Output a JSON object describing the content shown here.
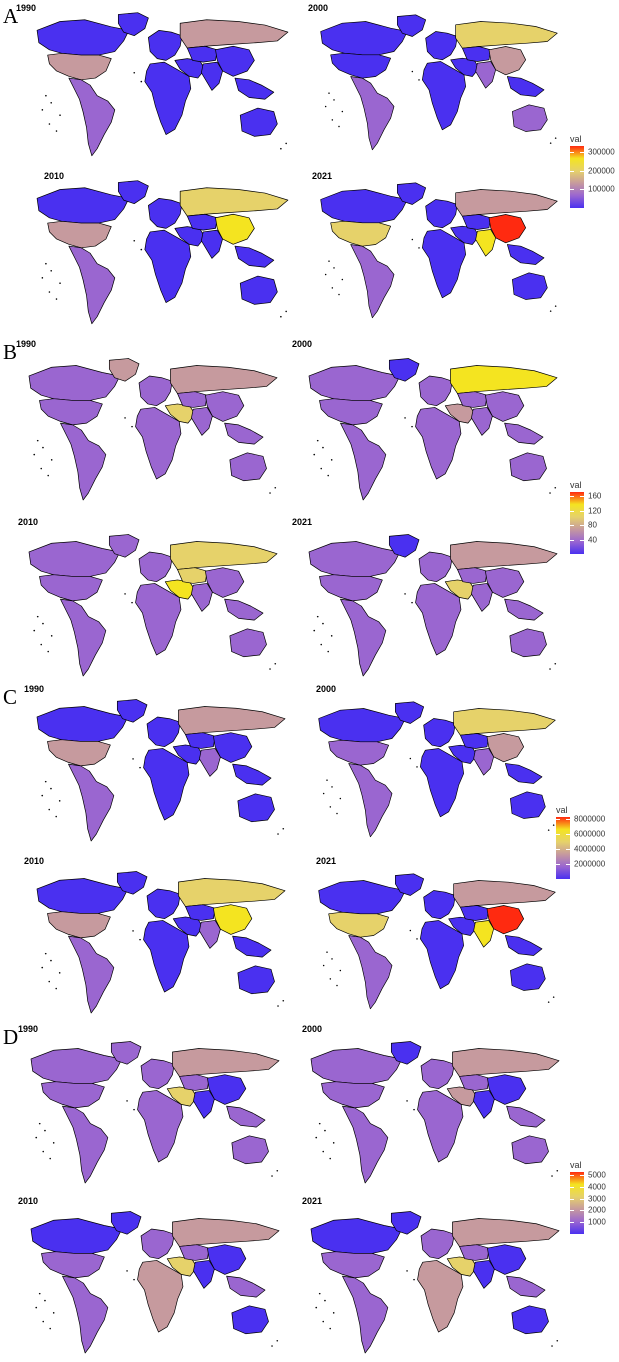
{
  "panels": [
    {
      "letter": "A",
      "years": [
        "1990",
        "2000",
        "2010",
        "2021"
      ],
      "legend": {
        "title": "val",
        "ticks": [
          "300000",
          "200000",
          "100000"
        ],
        "max_fraction": 0.9
      },
      "maps": [
        {
          "NA": "low",
          "GL": "low",
          "USA": "mid",
          "LA": "lowmid",
          "EU": "low",
          "RU": "mid",
          "AF": "low",
          "ME": "low",
          "CA": "low",
          "CN": "low",
          "IN": "low",
          "SEA": "low",
          "AU": "low"
        },
        {
          "NA": "low",
          "GL": "low",
          "USA": "low",
          "LA": "lowmid",
          "EU": "low",
          "RU": "highmid",
          "AF": "low",
          "ME": "low",
          "CA": "low",
          "CN": "mid",
          "IN": "lowmid",
          "SEA": "low",
          "AU": "lowmid"
        },
        {
          "NA": "low",
          "GL": "low",
          "USA": "mid",
          "LA": "lowmid",
          "EU": "low",
          "RU": "highmid",
          "AF": "low",
          "ME": "low",
          "CA": "low",
          "CN": "high",
          "IN": "low",
          "SEA": "low",
          "AU": "low"
        },
        {
          "NA": "low",
          "GL": "low",
          "USA": "highmid",
          "LA": "lowmid",
          "EU": "low",
          "RU": "mid",
          "AF": "low",
          "ME": "low",
          "CA": "low",
          "CN": "max",
          "IN": "high",
          "SEA": "low",
          "AU": "low"
        }
      ]
    },
    {
      "letter": "B",
      "years": [
        "1990",
        "2000",
        "2010",
        "2021"
      ],
      "legend": {
        "title": "val",
        "ticks": [
          "160",
          "120",
          "80",
          "40"
        ],
        "max_fraction": 0.93
      },
      "maps": [
        {
          "NA": "lowmid",
          "GL": "mid",
          "USA": "lowmid",
          "LA": "lowmid",
          "EU": "lowmid",
          "RU": "mid",
          "AF": "lowmid",
          "ME": "highmid",
          "CA": "lowmid",
          "CN": "lowmid",
          "IN": "lowmid",
          "SEA": "lowmid",
          "AU": "lowmid"
        },
        {
          "NA": "lowmid",
          "GL": "low",
          "USA": "lowmid",
          "LA": "lowmid",
          "EU": "lowmid",
          "RU": "high",
          "AF": "lowmid",
          "ME": "mid",
          "CA": "lowmid",
          "CN": "lowmid",
          "IN": "lowmid",
          "SEA": "lowmid",
          "AU": "lowmid"
        },
        {
          "NA": "lowmid",
          "GL": "lowmid",
          "USA": "lowmid",
          "LA": "lowmid",
          "EU": "lowmid",
          "RU": "highmid",
          "AF": "lowmid",
          "ME": "high",
          "CA": "highmid",
          "CN": "lowmid",
          "IN": "lowmid",
          "SEA": "lowmid",
          "AU": "lowmid"
        },
        {
          "NA": "lowmid",
          "GL": "low",
          "USA": "lowmid",
          "LA": "lowmid",
          "EU": "lowmid",
          "RU": "mid",
          "AF": "lowmid",
          "ME": "highmid",
          "CA": "lowmid",
          "CN": "lowmid",
          "IN": "lowmid",
          "SEA": "lowmid",
          "AU": "lowmid"
        }
      ]
    },
    {
      "letter": "C",
      "years": [
        "1990",
        "2000",
        "2010",
        "2021"
      ],
      "legend": {
        "title": "val",
        "ticks": [
          "8000000",
          "6000000",
          "4000000",
          "2000000"
        ],
        "max_fraction": 0.97
      },
      "maps": [
        {
          "NA": "low",
          "GL": "low",
          "USA": "mid",
          "LA": "lowmid",
          "EU": "low",
          "RU": "mid",
          "AF": "low",
          "ME": "low",
          "CA": "low",
          "CN": "low",
          "IN": "lowmid",
          "SEA": "low",
          "AU": "low"
        },
        {
          "NA": "low",
          "GL": "low",
          "USA": "lowmid",
          "LA": "lowmid",
          "EU": "low",
          "RU": "highmid",
          "AF": "low",
          "ME": "low",
          "CA": "low",
          "CN": "mid",
          "IN": "lowmid",
          "SEA": "low",
          "AU": "low"
        },
        {
          "NA": "low",
          "GL": "low",
          "USA": "mid",
          "LA": "lowmid",
          "EU": "low",
          "RU": "highmid",
          "AF": "low",
          "ME": "low",
          "CA": "low",
          "CN": "high",
          "IN": "lowmid",
          "SEA": "low",
          "AU": "low"
        },
        {
          "NA": "low",
          "GL": "low",
          "USA": "highmid",
          "LA": "lowmid",
          "EU": "low",
          "RU": "mid",
          "AF": "low",
          "ME": "low",
          "CA": "low",
          "CN": "max",
          "IN": "high",
          "SEA": "low",
          "AU": "low"
        }
      ]
    },
    {
      "letter": "D",
      "years": [
        "1990",
        "2000",
        "2010",
        "2021"
      ],
      "legend": {
        "title": "val",
        "ticks": [
          "5000",
          "4000",
          "3000",
          "2000",
          "1000"
        ],
        "max_fraction": 0.95
      },
      "maps": [
        {
          "NA": "lowmid",
          "GL": "lowmid",
          "USA": "lowmid",
          "LA": "lowmid",
          "EU": "lowmid",
          "RU": "mid",
          "AF": "lowmid",
          "ME": "highmid",
          "CA": "lowmid",
          "CN": "low",
          "IN": "low",
          "SEA": "lowmid",
          "AU": "lowmid"
        },
        {
          "NA": "lowmid",
          "GL": "low",
          "USA": "lowmid",
          "LA": "lowmid",
          "EU": "lowmid",
          "RU": "mid",
          "AF": "lowmid",
          "ME": "mid",
          "CA": "lowmid",
          "CN": "low",
          "IN": "low",
          "SEA": "lowmid",
          "AU": "lowmid"
        },
        {
          "NA": "low",
          "GL": "low",
          "USA": "lowmid",
          "LA": "lowmid",
          "EU": "lowmid",
          "RU": "mid",
          "AF": "mid",
          "ME": "highmid",
          "CA": "lowmid",
          "CN": "low",
          "IN": "low",
          "SEA": "lowmid",
          "AU": "low"
        },
        {
          "NA": "low",
          "GL": "low",
          "USA": "lowmid",
          "LA": "lowmid",
          "EU": "lowmid",
          "RU": "mid",
          "AF": "mid",
          "ME": "highmid",
          "CA": "lowmid",
          "CN": "low",
          "IN": "low",
          "SEA": "lowmid",
          "AU": "low"
        }
      ]
    }
  ],
  "palette": {
    "low": "#4a30f0",
    "lowmid": "#9a66d0",
    "mid": "#c69a9e",
    "highmid": "#e6d26a",
    "high": "#f4e420",
    "max": "#ff2a10"
  },
  "gradient": [
    "#4a30f0",
    "#9a66d0",
    "#c69a9e",
    "#e6d26a",
    "#f4e420",
    "#ff2a10"
  ]
}
